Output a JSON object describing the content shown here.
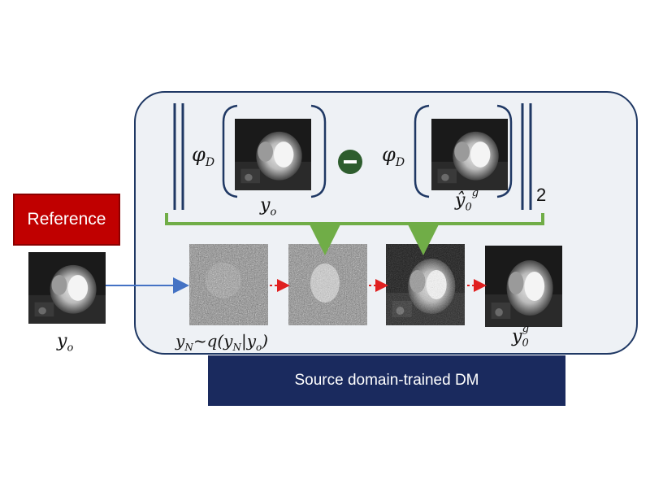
{
  "labels": {
    "reference": "Reference",
    "dm": "Source domain-trained DM",
    "phi_left": "φD",
    "phi_right": "φD",
    "y_o_top": "yo",
    "y0g_hat": "ŷ0g",
    "norm_sub": "2",
    "y_o_left": "yo",
    "y_N_eq": "yN~q(yN|yo)",
    "y0g": "y0g"
  },
  "colors": {
    "panel_border": "#1f3864",
    "panel_fill": "#eef1f5",
    "reference_red": "#c00000",
    "dm_bar": "#1a2a5e",
    "green_arrow": "#70ad47",
    "minus_circle": "#2e5d2e",
    "blue_arrow": "#4472c4",
    "red_dotted_arrow": "#e02020"
  },
  "icons": {
    "minus": "minus-circle-icon"
  }
}
